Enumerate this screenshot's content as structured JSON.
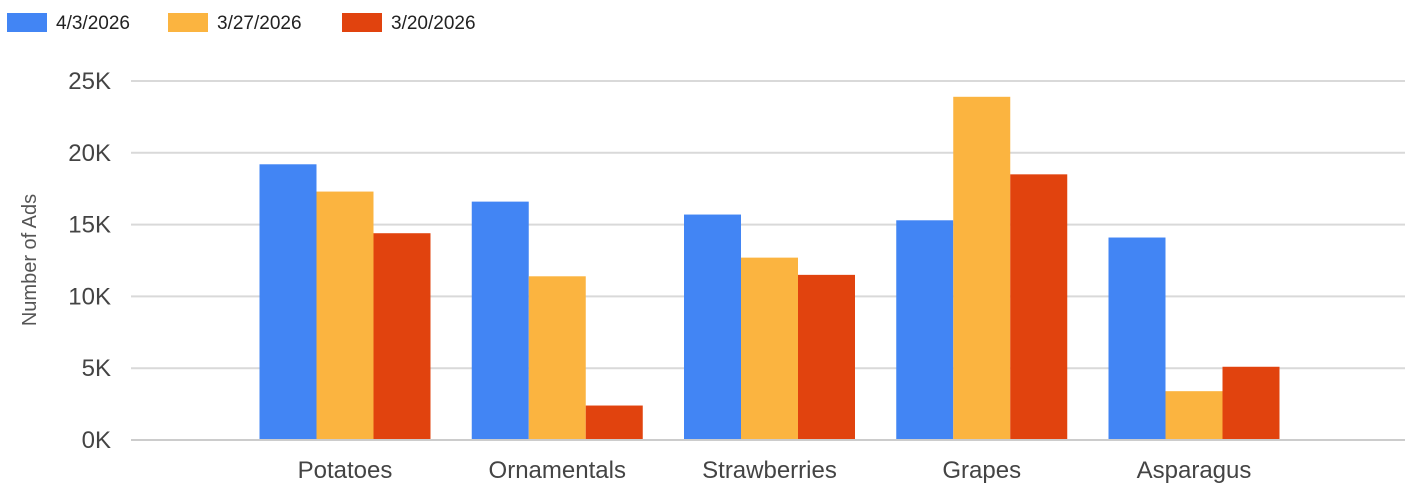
{
  "chart_data": {
    "type": "bar",
    "title": "",
    "xlabel": "",
    "ylabel": "Number of Ads",
    "ylim": [
      0,
      25000
    ],
    "yticks": [
      {
        "value": 0,
        "label": "0K"
      },
      {
        "value": 5000,
        "label": "5K"
      },
      {
        "value": 10000,
        "label": "10K"
      },
      {
        "value": 15000,
        "label": "15K"
      },
      {
        "value": 20000,
        "label": "20K"
      },
      {
        "value": 25000,
        "label": "25K"
      }
    ],
    "grid": true,
    "legend_position": "top-left",
    "categories": [
      "Potatoes",
      "Ornamentals",
      "Strawberries",
      "Grapes",
      "Asparagus"
    ],
    "series": [
      {
        "name": "4/3/2026",
        "color": "#4285f4",
        "values": [
          19200,
          16600,
          15700,
          15300,
          14100
        ]
      },
      {
        "name": "3/27/2026",
        "color": "#fbb440",
        "values": [
          17300,
          11400,
          12700,
          23900,
          3400
        ]
      },
      {
        "name": "3/20/2026",
        "color": "#e1430e",
        "values": [
          14400,
          2400,
          11500,
          18500,
          5100
        ]
      }
    ]
  }
}
